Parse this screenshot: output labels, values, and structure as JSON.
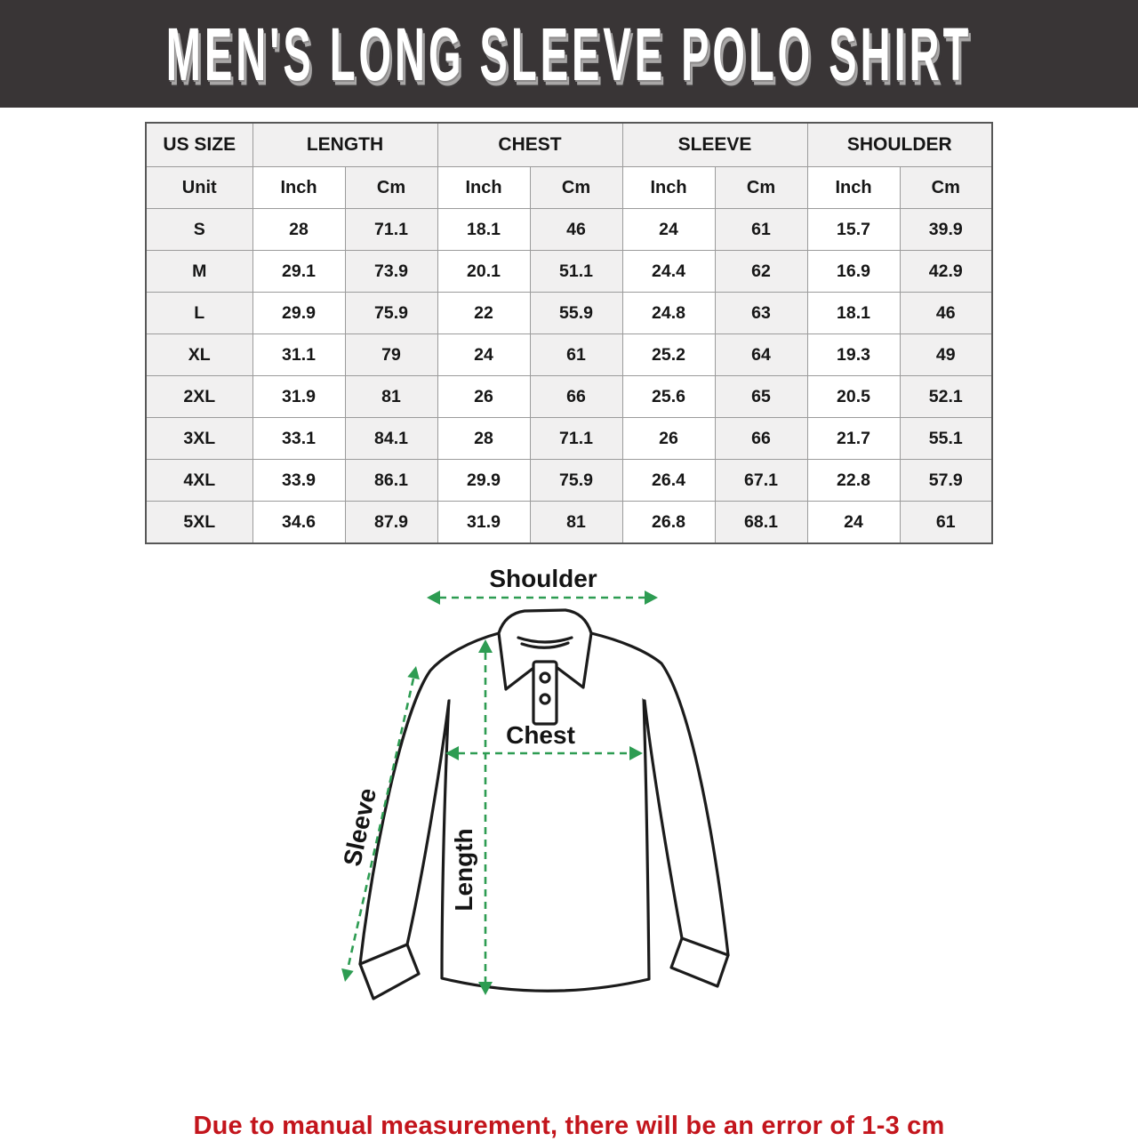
{
  "banner": {
    "title": "MEN'S LONG SLEEVE POLO SHIRT",
    "bg_color": "#393536",
    "text_color": "#ffffff"
  },
  "table": {
    "header_groups": [
      {
        "label": "US SIZE",
        "span": 1
      },
      {
        "label": "LENGTH",
        "span": 2
      },
      {
        "label": "CHEST",
        "span": 2
      },
      {
        "label": "SLEEVE",
        "span": 2
      },
      {
        "label": "SHOULDER",
        "span": 2
      }
    ],
    "unit_row": [
      "Unit",
      "Inch",
      "Cm",
      "Inch",
      "Cm",
      "Inch",
      "Cm",
      "Inch",
      "Cm"
    ],
    "rows": [
      {
        "size": "S",
        "values": [
          "28",
          "71.1",
          "18.1",
          "46",
          "24",
          "61",
          "15.7",
          "39.9"
        ]
      },
      {
        "size": "M",
        "values": [
          "29.1",
          "73.9",
          "20.1",
          "51.1",
          "24.4",
          "62",
          "16.9",
          "42.9"
        ]
      },
      {
        "size": "L",
        "values": [
          "29.9",
          "75.9",
          "22",
          "55.9",
          "24.8",
          "63",
          "18.1",
          "46"
        ]
      },
      {
        "size": "XL",
        "values": [
          "31.1",
          "79",
          "24",
          "61",
          "25.2",
          "64",
          "19.3",
          "49"
        ]
      },
      {
        "size": "2XL",
        "values": [
          "31.9",
          "81",
          "26",
          "66",
          "25.6",
          "65",
          "20.5",
          "52.1"
        ]
      },
      {
        "size": "3XL",
        "values": [
          "33.1",
          "84.1",
          "28",
          "71.1",
          "26",
          "66",
          "21.7",
          "55.1"
        ]
      },
      {
        "size": "4XL",
        "values": [
          "33.9",
          "86.1",
          "29.9",
          "75.9",
          "26.4",
          "67.1",
          "22.8",
          "57.9"
        ]
      },
      {
        "size": "5XL",
        "values": [
          "34.6",
          "87.9",
          "31.9",
          "81",
          "26.8",
          "68.1",
          "24",
          "61"
        ]
      }
    ],
    "cell_gray": "#f1f0f0",
    "border_color": "#9b9b9b"
  },
  "diagram": {
    "labels": {
      "shoulder": "Shoulder",
      "chest": "Chest",
      "sleeve": "Sleeve",
      "length": "Length"
    },
    "arrow_color": "#2d9c52",
    "outline_color": "#1b1b1b"
  },
  "footer": {
    "note": "Due to manual measurement, there will be an error of 1-3 cm",
    "color": "#c3151c"
  }
}
